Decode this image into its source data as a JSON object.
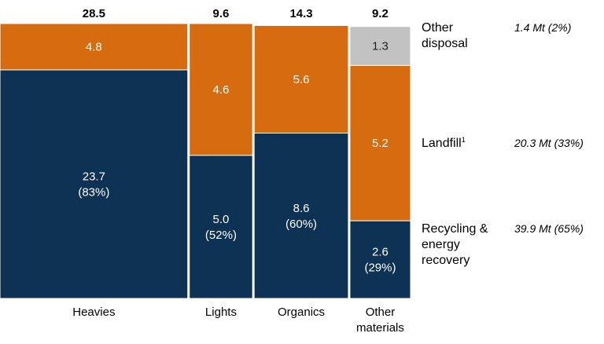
{
  "chart_data": {
    "type": "bar",
    "subtype": "marimekko",
    "categories": [
      "Heavies",
      "Lights",
      "Organics",
      "Other materials"
    ],
    "totals": [
      28.5,
      9.6,
      14.3,
      9.2
    ],
    "total_labels": [
      "28.5",
      "9.6",
      "14.3",
      "9.2"
    ],
    "series": [
      {
        "name": "Recycling & energy recovery",
        "values": [
          23.7,
          5.0,
          8.6,
          2.6
        ],
        "labels": [
          [
            "23.7",
            "(83%)"
          ],
          [
            "5.0",
            "(52%)"
          ],
          [
            "8.6",
            "(60%)"
          ],
          [
            "2.6",
            "(29%)"
          ]
        ],
        "color": "#0e3253"
      },
      {
        "name": "Landfill",
        "values": [
          4.8,
          4.6,
          5.6,
          5.2
        ],
        "labels": [
          [
            "4.8"
          ],
          [
            "4.6"
          ],
          [
            "5.6"
          ],
          [
            "5.2"
          ]
        ],
        "color": "#d66b0f"
      },
      {
        "name": "Other disposal",
        "values": [
          0,
          0,
          0,
          1.3
        ],
        "labels": [
          [],
          [],
          [],
          [
            "1.3"
          ]
        ],
        "color": "#c2c2c2"
      }
    ],
    "category_labels": [
      [
        "Heavies"
      ],
      [
        "Lights"
      ],
      [
        "Organics"
      ],
      [
        "Other",
        "materials"
      ]
    ],
    "legend": [
      {
        "lines": [
          "Other",
          "disposal"
        ],
        "sup": "",
        "summary": "1.4 Mt (2%)"
      },
      {
        "lines": [
          "Landfill"
        ],
        "sup": "1",
        "summary": "20.3 Mt (33%)"
      },
      {
        "lines": [
          "Recycling &",
          "energy",
          "recovery"
        ],
        "sup": "",
        "summary": "39.9 Mt (65%)"
      }
    ],
    "legend_placement": "right",
    "unit": "Mt"
  }
}
